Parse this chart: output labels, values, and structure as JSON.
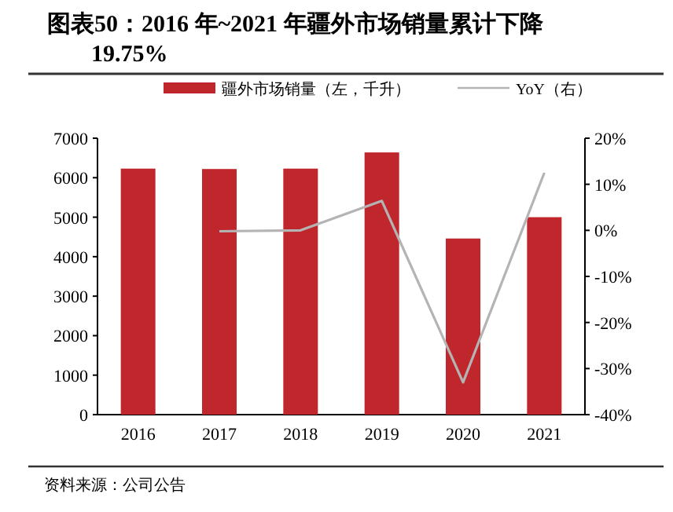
{
  "chart_data": {
    "type": "bar",
    "title": "图表50：2016 年~2021 年疆外市场销量累计下降19.75%",
    "categories": [
      "2016",
      "2017",
      "2018",
      "2019",
      "2020",
      "2021"
    ],
    "series": [
      {
        "name": "疆外市场销量（左，千升）",
        "color": "#c0272d",
        "values": [
          6230,
          6220,
          6230,
          6640,
          4460,
          5000
        ]
      },
      {
        "name": "YoY（右）",
        "type": "line",
        "axis": "y2",
        "color": "#b4b4b4",
        "values": [
          null,
          -0.2,
          0,
          6.4,
          -33,
          12.5
        ]
      }
    ],
    "ylim": [
      0,
      7000
    ],
    "yticks": [
      0,
      1000,
      2000,
      3000,
      4000,
      5000,
      6000,
      7000
    ],
    "y2lim": [
      -40,
      20
    ],
    "y2ticks": [
      {
        "value": -40,
        "label": "-40%"
      },
      {
        "value": -30,
        "label": "-30%"
      },
      {
        "value": -20,
        "label": "-20%"
      },
      {
        "value": -10,
        "label": "-10%"
      },
      {
        "value": 0,
        "label": "0%"
      },
      {
        "value": 10,
        "label": "10%"
      },
      {
        "value": 20,
        "label": "20%"
      }
    ],
    "legend": "top",
    "grid": false,
    "annotations": [
      "资料来源：公司公告"
    ]
  }
}
